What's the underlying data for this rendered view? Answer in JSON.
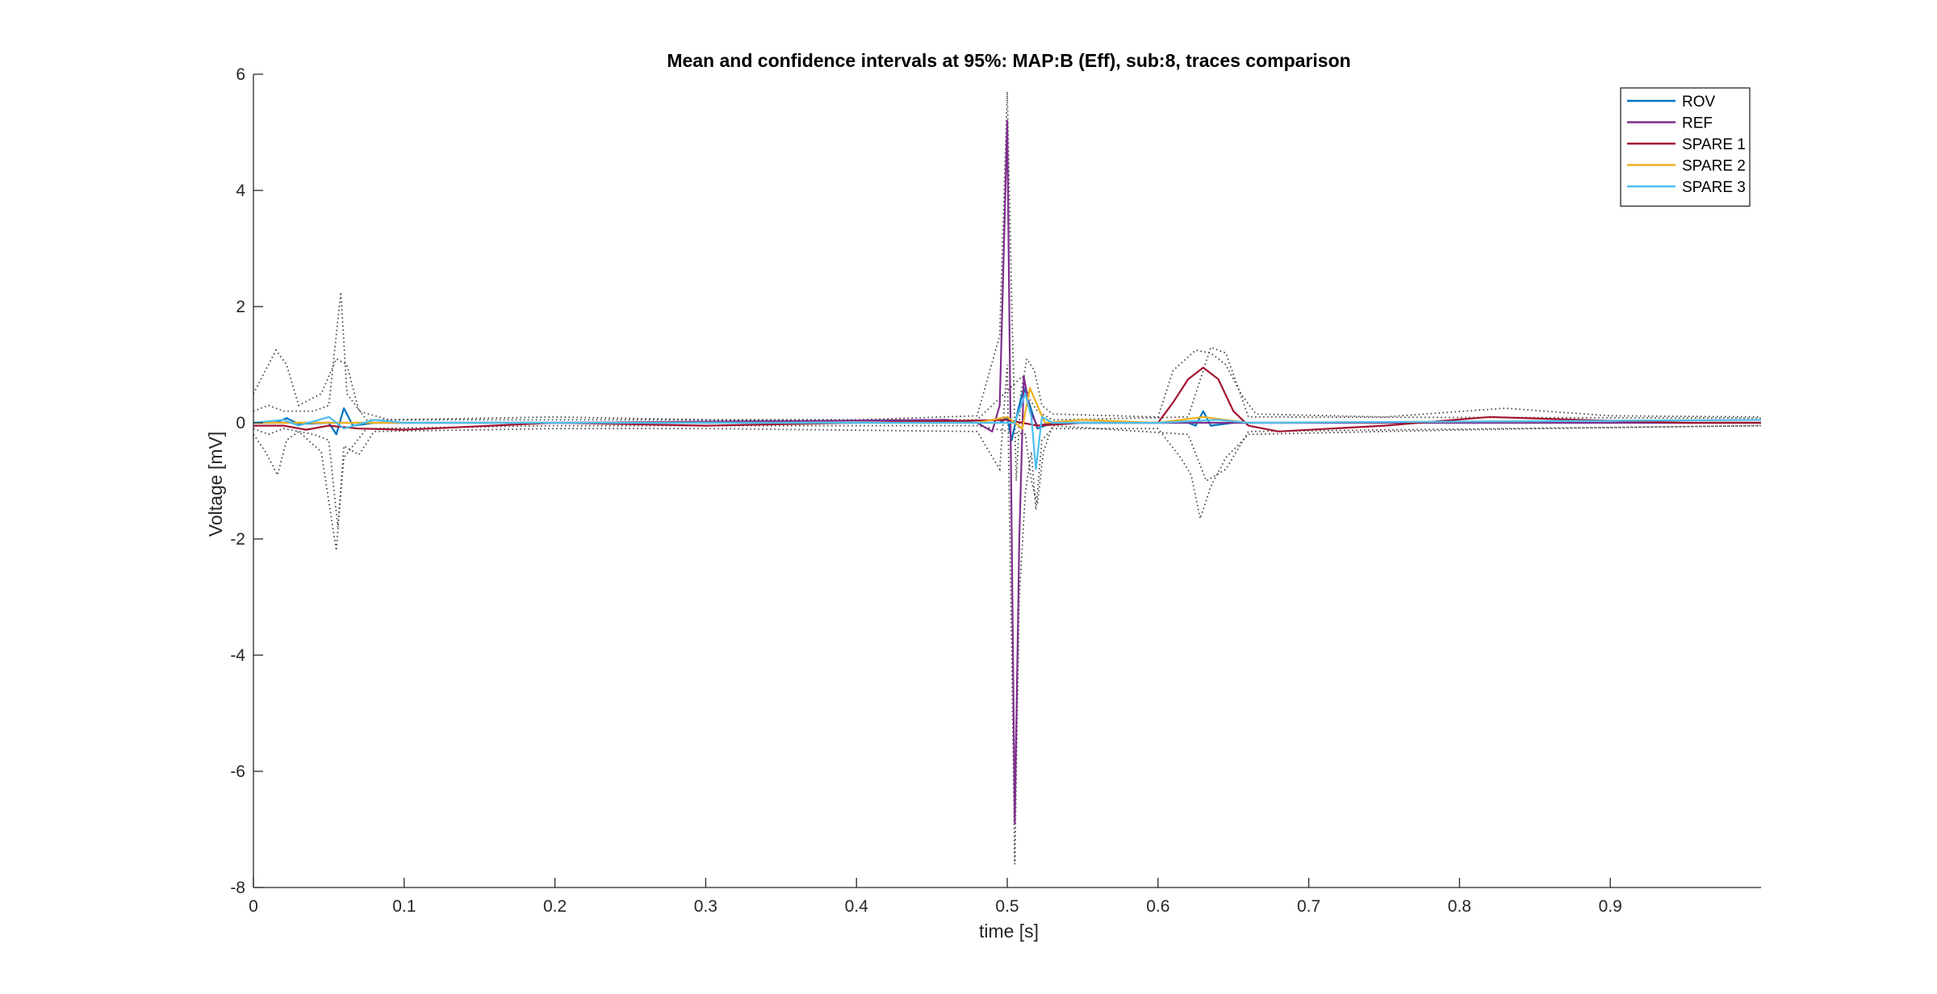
{
  "chart_data": {
    "type": "line",
    "title": "Mean and confidence intervals at 95%: MAP:B (Eff), sub:8, traces comparison",
    "xlabel": "time [s]",
    "ylabel": "Voltage [mV]",
    "xlim": [
      0,
      1
    ],
    "ylim": [
      -8,
      6
    ],
    "xticks": [
      0,
      0.1,
      0.2,
      0.3,
      0.4,
      0.5,
      0.6,
      0.7,
      0.8,
      0.9
    ],
    "xtick_labels": [
      "0",
      "0.1",
      "0.2",
      "0.3",
      "0.4",
      "0.5",
      "0.6",
      "0.7",
      "0.8",
      "0.9"
    ],
    "yticks": [
      -8,
      -6,
      -4,
      -2,
      0,
      2,
      4,
      6
    ],
    "ytick_labels": [
      "-8",
      "-6",
      "-4",
      "-2",
      "0",
      "2",
      "4",
      "6"
    ],
    "grid": false,
    "legend_position": "top-right",
    "series": [
      {
        "name": "ROV",
        "color": "#0072BD",
        "points": [
          [
            0,
            0.0
          ],
          [
            0.015,
            0.0
          ],
          [
            0.022,
            0.08
          ],
          [
            0.03,
            -0.02
          ],
          [
            0.05,
            0.0
          ],
          [
            0.055,
            -0.2
          ],
          [
            0.06,
            0.25
          ],
          [
            0.066,
            -0.05
          ],
          [
            0.08,
            0.0
          ],
          [
            0.2,
            0.0
          ],
          [
            0.48,
            0.0
          ],
          [
            0.495,
            0.0
          ],
          [
            0.5,
            0.1
          ],
          [
            0.503,
            -0.3
          ],
          [
            0.507,
            0.2
          ],
          [
            0.511,
            0.6
          ],
          [
            0.515,
            0.3
          ],
          [
            0.52,
            -0.1
          ],
          [
            0.53,
            0.0
          ],
          [
            0.62,
            0.0
          ],
          [
            0.625,
            -0.05
          ],
          [
            0.63,
            0.2
          ],
          [
            0.635,
            -0.05
          ],
          [
            0.65,
            0.0
          ],
          [
            1.0,
            0.0
          ]
        ]
      },
      {
        "name": "REF",
        "color": "#7E2F8E",
        "points": [
          [
            0,
            0.0
          ],
          [
            0.2,
            0.0
          ],
          [
            0.46,
            0.05
          ],
          [
            0.48,
            0.0
          ],
          [
            0.49,
            -0.15
          ],
          [
            0.495,
            0.3
          ],
          [
            0.5,
            5.2
          ],
          [
            0.503,
            -2.0
          ],
          [
            0.505,
            -6.9
          ],
          [
            0.508,
            -2.0
          ],
          [
            0.511,
            0.8
          ],
          [
            0.515,
            0.2
          ],
          [
            0.52,
            -0.05
          ],
          [
            0.53,
            0.0
          ],
          [
            1.0,
            0.0
          ]
        ]
      },
      {
        "name": "SPARE 1",
        "color": "#A2142F",
        "points": [
          [
            0,
            -0.05
          ],
          [
            0.02,
            -0.05
          ],
          [
            0.035,
            -0.12
          ],
          [
            0.05,
            -0.05
          ],
          [
            0.07,
            -0.1
          ],
          [
            0.1,
            -0.12
          ],
          [
            0.2,
            0.0
          ],
          [
            0.3,
            -0.05
          ],
          [
            0.4,
            0.0
          ],
          [
            0.5,
            0.05
          ],
          [
            0.52,
            -0.05
          ],
          [
            0.55,
            0.0
          ],
          [
            0.6,
            0.0
          ],
          [
            0.61,
            0.35
          ],
          [
            0.62,
            0.75
          ],
          [
            0.63,
            0.95
          ],
          [
            0.64,
            0.75
          ],
          [
            0.65,
            0.2
          ],
          [
            0.66,
            -0.05
          ],
          [
            0.68,
            -0.15
          ],
          [
            0.75,
            -0.05
          ],
          [
            0.82,
            0.1
          ],
          [
            0.88,
            0.05
          ],
          [
            0.95,
            0.0
          ],
          [
            1.0,
            0.0
          ]
        ]
      },
      {
        "name": "SPARE 2",
        "color": "#EDB120",
        "points": [
          [
            0,
            0.0
          ],
          [
            0.1,
            0.0
          ],
          [
            0.48,
            0.0
          ],
          [
            0.5,
            0.1
          ],
          [
            0.51,
            -0.1
          ],
          [
            0.515,
            0.6
          ],
          [
            0.52,
            0.3
          ],
          [
            0.525,
            0.0
          ],
          [
            0.55,
            0.05
          ],
          [
            0.6,
            0.0
          ],
          [
            0.63,
            0.1
          ],
          [
            0.66,
            0.0
          ],
          [
            1.0,
            0.05
          ]
        ]
      },
      {
        "name": "SPARE 3",
        "color": "#4DBEEE",
        "points": [
          [
            0,
            0.0
          ],
          [
            0.02,
            0.05
          ],
          [
            0.03,
            -0.05
          ],
          [
            0.05,
            0.1
          ],
          [
            0.06,
            -0.1
          ],
          [
            0.08,
            0.05
          ],
          [
            0.1,
            0.0
          ],
          [
            0.48,
            0.0
          ],
          [
            0.505,
            0.0
          ],
          [
            0.512,
            0.5
          ],
          [
            0.516,
            0.1
          ],
          [
            0.519,
            -0.8
          ],
          [
            0.523,
            0.1
          ],
          [
            0.53,
            0.0
          ],
          [
            0.6,
            0.0
          ],
          [
            0.64,
            0.05
          ],
          [
            0.66,
            0.0
          ],
          [
            1.0,
            0.05
          ]
        ]
      }
    ],
    "confidence_bounds": {
      "color": "#404040",
      "style": "dotted",
      "curves": [
        [
          [
            0,
            0.5
          ],
          [
            0.008,
            0.9
          ],
          [
            0.015,
            1.25
          ],
          [
            0.022,
            1.0
          ],
          [
            0.03,
            0.3
          ],
          [
            0.045,
            0.5
          ],
          [
            0.055,
            1.1
          ],
          [
            0.062,
            1.0
          ],
          [
            0.07,
            0.2
          ],
          [
            0.09,
            0.05
          ],
          [
            0.2,
            0.1
          ],
          [
            0.3,
            0.05
          ],
          [
            0.4,
            0.05
          ],
          [
            0.48,
            0.12
          ],
          [
            0.495,
            1.5
          ],
          [
            0.5,
            5.7
          ],
          [
            0.503,
            2.0
          ],
          [
            0.506,
            -1.0
          ],
          [
            0.509,
            0.5
          ],
          [
            0.513,
            1.1
          ],
          [
            0.518,
            0.9
          ],
          [
            0.523,
            0.3
          ],
          [
            0.53,
            0.15
          ],
          [
            0.6,
            0.1
          ],
          [
            0.61,
            0.9
          ],
          [
            0.625,
            1.25
          ],
          [
            0.635,
            1.2
          ],
          [
            0.645,
            1.0
          ],
          [
            0.655,
            0.5
          ],
          [
            0.665,
            0.15
          ],
          [
            0.75,
            0.1
          ],
          [
            0.83,
            0.25
          ],
          [
            0.9,
            0.12
          ],
          [
            1.0,
            0.1
          ]
        ],
        [
          [
            0,
            -0.2
          ],
          [
            0.008,
            -0.5
          ],
          [
            0.016,
            -0.9
          ],
          [
            0.022,
            -0.3
          ],
          [
            0.03,
            -0.15
          ],
          [
            0.045,
            -0.5
          ],
          [
            0.055,
            -2.2
          ],
          [
            0.06,
            -0.4
          ],
          [
            0.07,
            -0.55
          ],
          [
            0.08,
            -0.15
          ],
          [
            0.2,
            -0.1
          ],
          [
            0.3,
            -0.1
          ],
          [
            0.48,
            -0.15
          ],
          [
            0.495,
            -0.8
          ],
          [
            0.5,
            1.0
          ],
          [
            0.503,
            -4.0
          ],
          [
            0.505,
            -7.6
          ],
          [
            0.508,
            -3.0
          ],
          [
            0.512,
            -1.2
          ],
          [
            0.516,
            -0.5
          ],
          [
            0.519,
            -1.5
          ],
          [
            0.523,
            -0.3
          ],
          [
            0.53,
            -0.1
          ],
          [
            0.6,
            -0.1
          ],
          [
            0.615,
            -0.6
          ],
          [
            0.622,
            -0.9
          ],
          [
            0.628,
            -1.65
          ],
          [
            0.635,
            -1.1
          ],
          [
            0.645,
            -0.6
          ],
          [
            0.66,
            -0.2
          ],
          [
            0.75,
            -0.15
          ],
          [
            0.85,
            -0.1
          ],
          [
            1.0,
            -0.05
          ]
        ],
        [
          [
            0,
            0.2
          ],
          [
            0.01,
            0.3
          ],
          [
            0.02,
            0.2
          ],
          [
            0.04,
            0.2
          ],
          [
            0.05,
            0.3
          ],
          [
            0.058,
            2.25
          ],
          [
            0.062,
            0.5
          ],
          [
            0.075,
            0.05
          ],
          [
            0.2,
            0.05
          ],
          [
            0.48,
            0.05
          ],
          [
            0.51,
            0.8
          ],
          [
            0.515,
            0.4
          ],
          [
            0.52,
            0.2
          ],
          [
            0.53,
            0.05
          ],
          [
            0.62,
            0.1
          ],
          [
            0.635,
            1.3
          ],
          [
            0.645,
            1.2
          ],
          [
            0.66,
            0.1
          ],
          [
            1.0,
            0.08
          ]
        ],
        [
          [
            0,
            -0.1
          ],
          [
            0.01,
            -0.2
          ],
          [
            0.02,
            -0.1
          ],
          [
            0.04,
            -0.2
          ],
          [
            0.05,
            -0.3
          ],
          [
            0.056,
            -1.8
          ],
          [
            0.06,
            -0.6
          ],
          [
            0.075,
            -0.1
          ],
          [
            0.2,
            -0.05
          ],
          [
            0.48,
            -0.05
          ],
          [
            0.512,
            -0.2
          ],
          [
            0.516,
            -1.0
          ],
          [
            0.52,
            -1.4
          ],
          [
            0.524,
            -0.5
          ],
          [
            0.53,
            -0.05
          ],
          [
            0.62,
            -0.2
          ],
          [
            0.632,
            -1.0
          ],
          [
            0.645,
            -0.8
          ],
          [
            0.66,
            -0.15
          ],
          [
            1.0,
            -0.05
          ]
        ]
      ]
    }
  }
}
